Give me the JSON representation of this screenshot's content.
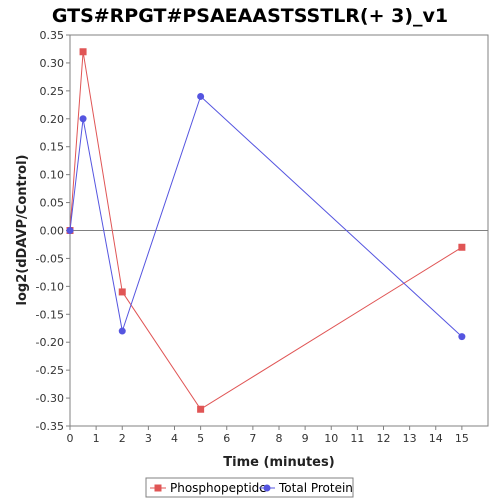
{
  "chart_data": {
    "type": "line",
    "title": "GTS#RPGT#PSAEAASTSSTLR(+ 3)_v1",
    "xlabel": "Time (minutes)",
    "ylabel": "log2(dDAVP/Control)",
    "xlim": [
      0,
      16
    ],
    "ylim": [
      -0.35,
      0.35
    ],
    "x_ticks": [
      "0",
      "1",
      "2",
      "3",
      "4",
      "5",
      "6",
      "7",
      "8",
      "9",
      "10",
      "11",
      "12",
      "13",
      "14",
      "15"
    ],
    "y_ticks": [
      "0.35",
      "0.30",
      "0.25",
      "0.20",
      "0.15",
      "0.10",
      "0.05",
      "0.00",
      "-0.05",
      "-0.10",
      "-0.15",
      "-0.20",
      "-0.25",
      "-0.30",
      "-0.35"
    ],
    "grid": false,
    "legend_position": "bottom",
    "series": [
      {
        "name": "Phosphopeptide",
        "color": "#e05555",
        "marker": "square",
        "x": [
          0,
          0.5,
          2,
          5,
          15
        ],
        "y": [
          0.0,
          0.32,
          -0.11,
          -0.32,
          -0.03
        ]
      },
      {
        "name": "Total Protein",
        "color": "#5555e0",
        "marker": "circle",
        "x": [
          0,
          0.5,
          2,
          5,
          15
        ],
        "y": [
          0.0,
          0.2,
          -0.18,
          0.24,
          -0.19
        ]
      }
    ]
  }
}
